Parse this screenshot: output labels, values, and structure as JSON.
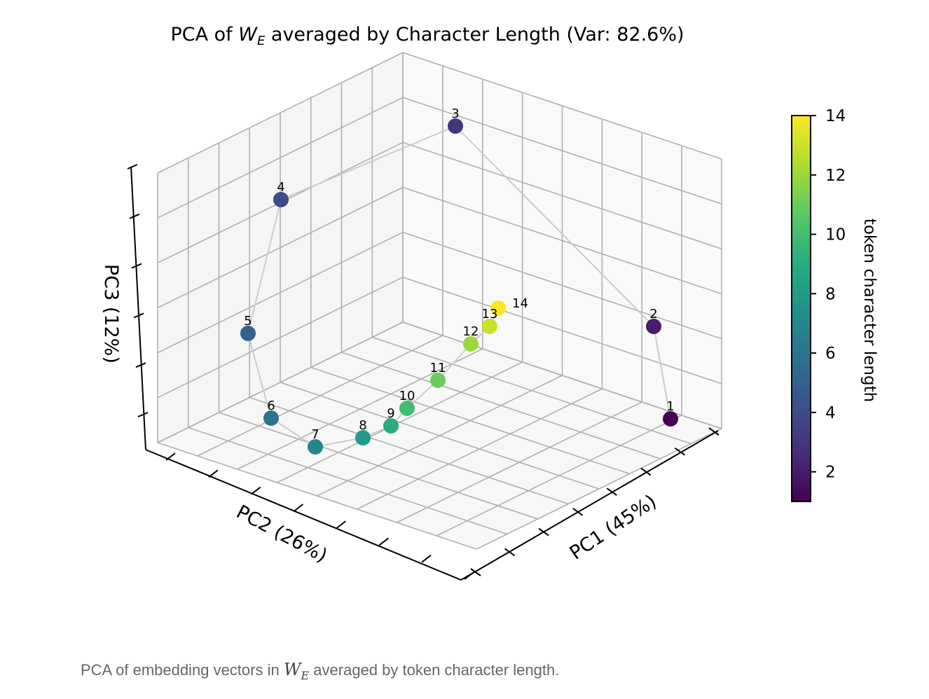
{
  "chart_data": {
    "type": "scatter",
    "projection": "3d",
    "title": {
      "prefix": "PCA of ",
      "math_base": "W",
      "math_sub": "E",
      "suffix": " averaged by Character Length (Var: 82.6%)"
    },
    "xlabel": "PC1 (45%)",
    "ylabel": "PC2 (26%)",
    "zlabel": "PC3 (12%)",
    "tick_labels_shown": false,
    "grid": true,
    "connecting_line": true,
    "points": [
      {
        "label": "1",
        "char_length": 1,
        "pc1": 0.9,
        "pc2": 0.05,
        "pc3": 0.05
      },
      {
        "label": "2",
        "char_length": 2,
        "pc1": 0.7,
        "pc2": 0.05,
        "pc3": 0.25
      },
      {
        "label": "3",
        "char_length": 3,
        "pc1": 0.05,
        "pc2": 0.12,
        "pc3": 0.92
      },
      {
        "label": "4",
        "char_length": 4,
        "pc1": 0.05,
        "pc2": 0.8,
        "pc3": 0.85
      },
      {
        "label": "5",
        "char_length": 5,
        "pc1": 0.05,
        "pc2": 0.9,
        "pc3": 0.52
      },
      {
        "label": "6",
        "char_length": 6,
        "pc1": 0.1,
        "pc2": 0.9,
        "pc3": 0.22
      },
      {
        "label": "7",
        "char_length": 7,
        "pc1": 0.2,
        "pc2": 0.8,
        "pc3": 0.12
      },
      {
        "label": "8",
        "char_length": 8,
        "pc1": 0.28,
        "pc2": 0.65,
        "pc3": 0.12
      },
      {
        "label": "9",
        "char_length": 9,
        "pc1": 0.32,
        "pc2": 0.58,
        "pc3": 0.14
      },
      {
        "label": "10",
        "char_length": 10,
        "pc1": 0.33,
        "pc2": 0.52,
        "pc3": 0.18
      },
      {
        "label": "11",
        "char_length": 11,
        "pc1": 0.35,
        "pc2": 0.4,
        "pc3": 0.22
      },
      {
        "label": "12",
        "char_length": 12,
        "pc1": 0.36,
        "pc2": 0.28,
        "pc3": 0.28
      },
      {
        "label": "13",
        "char_length": 13,
        "pc1": 0.38,
        "pc2": 0.22,
        "pc3": 0.32
      },
      {
        "label": "14",
        "char_length": 14,
        "pc1": 0.4,
        "pc2": 0.18,
        "pc3": 0.36
      }
    ],
    "colorbar": {
      "label": "token character length",
      "colormap": "viridis",
      "range": [
        1,
        14
      ],
      "ticks": [
        "2",
        "4",
        "6",
        "8",
        "10",
        "12",
        "14"
      ]
    }
  },
  "caption": {
    "prefix": "PCA of embedding vectors in ",
    "math_base": "W",
    "math_sub": "E",
    "suffix": " averaged by token character length."
  },
  "colors": {
    "pane": "#f7f7f7",
    "grid": "#b0b0b0",
    "line": "#cccccc",
    "axis": "#000000"
  }
}
